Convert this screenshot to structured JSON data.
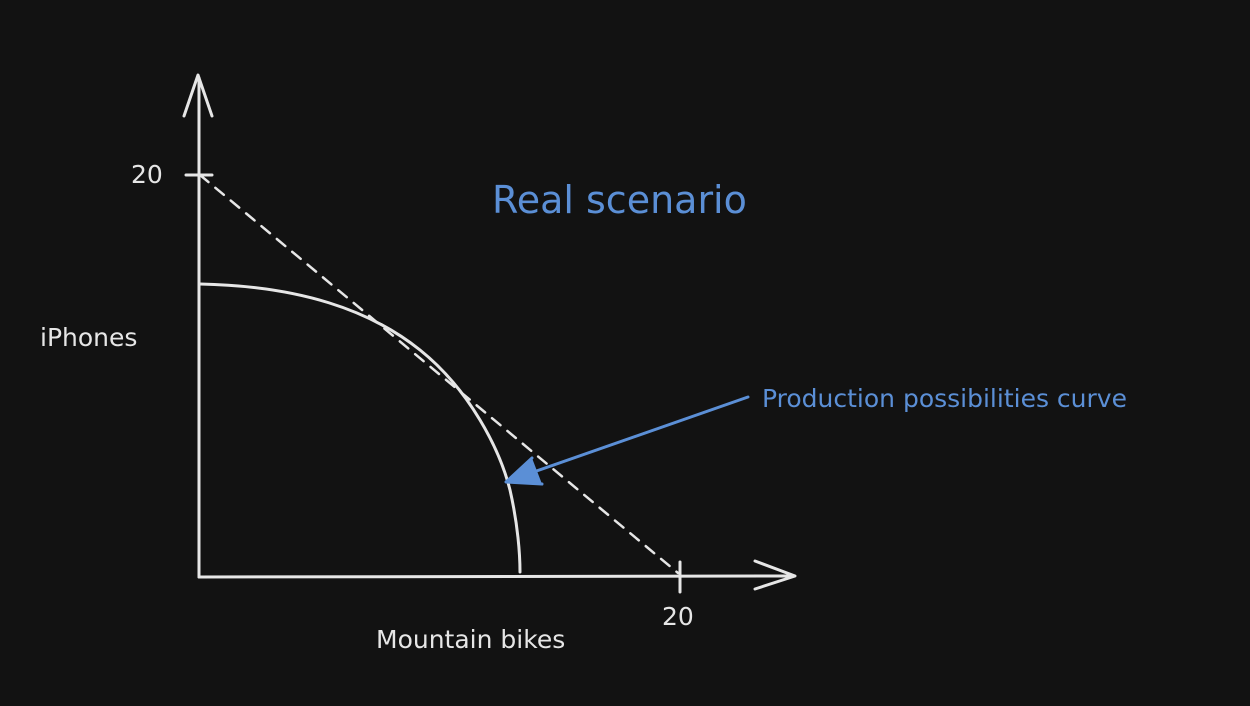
{
  "diagram": {
    "title": "Real scenario",
    "y_axis_label": "iPhones",
    "x_axis_label": "Mountain bikes",
    "y_tick_label": "20",
    "x_tick_label": "20",
    "annotation_label": "Production possibilities curve"
  },
  "colors": {
    "background": "#121212",
    "stroke": "#e6e6e6",
    "accent": "#5b8fd6"
  }
}
